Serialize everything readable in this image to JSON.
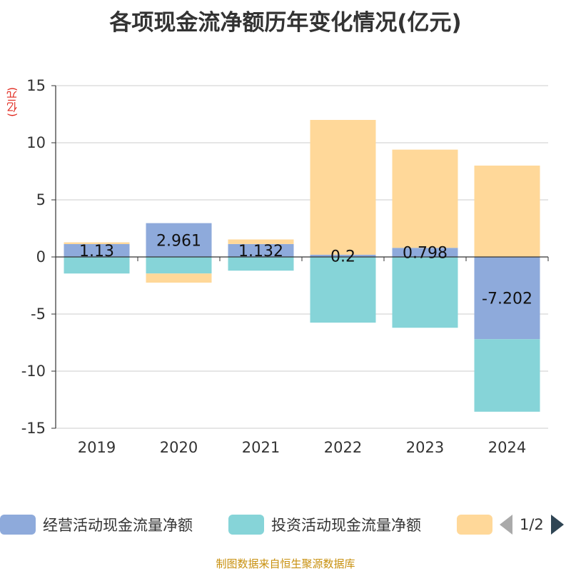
{
  "chart_data": {
    "type": "bar",
    "stacked": true,
    "title": "各项现金流净额历年变化情况(亿元)",
    "ylabel": "(亿元)",
    "xlabel": "",
    "categories": [
      "2019",
      "2020",
      "2021",
      "2022",
      "2023",
      "2024"
    ],
    "ylim": [
      -15,
      15
    ],
    "yticks": [
      15,
      10,
      5,
      0,
      -5,
      -10,
      -15
    ],
    "series": [
      {
        "name": "经营活动现金流量净额",
        "color": "#8eaadb",
        "values": [
          1.13,
          2.961,
          1.132,
          0.2,
          0.798,
          -7.202
        ],
        "labels": [
          "1.13",
          "2.961",
          "1.132",
          "0.2",
          "0.798",
          "-7.202"
        ]
      },
      {
        "name": "投资活动现金流量净额",
        "color": "#86d4d8",
        "values": [
          -1.45,
          -1.45,
          -1.2,
          -5.75,
          -6.2,
          -6.35
        ]
      },
      {
        "name": "",
        "color": "#ffd899",
        "values": [
          0.15,
          -0.8,
          0.4,
          11.8,
          8.6,
          8.0
        ]
      }
    ],
    "legend": {
      "position": "bottom",
      "page": "1/2"
    },
    "source": "制图数据来自恒生聚源数据库"
  }
}
